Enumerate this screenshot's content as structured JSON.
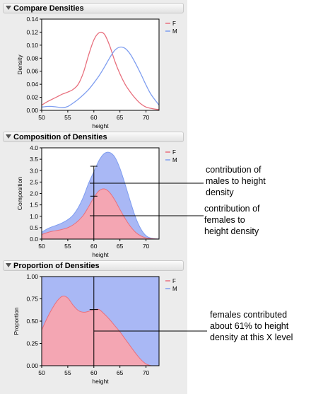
{
  "panels": [
    {
      "title": "Compare Densities"
    },
    {
      "title": "Composition of Densities"
    },
    {
      "title": "Proportion of Densities"
    }
  ],
  "annotations": {
    "males": [
      "contribution of",
      "males to height",
      "density"
    ],
    "females": [
      "contribution of",
      "females to",
      "height density"
    ],
    "proportion": [
      "females contributed",
      "about 61% to height",
      "density at this X level"
    ]
  },
  "colors": {
    "F": "#e8707e",
    "M": "#7f9ef0",
    "F_fill": "#f4a6b3",
    "M_fill": "#a9b8f5"
  },
  "chart_data": [
    {
      "type": "line",
      "title": "Compare Densities",
      "xlabel": "height",
      "ylabel": "Density",
      "xlim": [
        50,
        72.5
      ],
      "ylim": [
        0,
        0.14
      ],
      "xticks": [
        50,
        55,
        60,
        65,
        70
      ],
      "yticks": [
        0.0,
        0.02,
        0.04,
        0.06,
        0.08,
        0.1,
        0.12,
        0.14
      ],
      "legend": "top-right",
      "series": [
        {
          "name": "F",
          "x": [
            50,
            51,
            52,
            53,
            54,
            55,
            56,
            57,
            58,
            59,
            60,
            61,
            62,
            63,
            64,
            65,
            66,
            67,
            68,
            69,
            70,
            71,
            72.5
          ],
          "values": [
            0.008,
            0.013,
            0.017,
            0.021,
            0.025,
            0.028,
            0.032,
            0.04,
            0.058,
            0.085,
            0.108,
            0.119,
            0.117,
            0.1,
            0.076,
            0.056,
            0.04,
            0.028,
            0.018,
            0.01,
            0.005,
            0.003,
            0.001
          ]
        },
        {
          "name": "M",
          "x": [
            50,
            51,
            52,
            53,
            54,
            55,
            56,
            57,
            58,
            59,
            60,
            61,
            62,
            63,
            64,
            65,
            66,
            67,
            68,
            69,
            70,
            71,
            72.5
          ],
          "values": [
            0.005,
            0.006,
            0.006,
            0.005,
            0.004,
            0.006,
            0.011,
            0.017,
            0.024,
            0.032,
            0.042,
            0.053,
            0.066,
            0.08,
            0.092,
            0.097,
            0.095,
            0.086,
            0.072,
            0.056,
            0.039,
            0.024,
            0.008
          ]
        }
      ]
    },
    {
      "type": "area",
      "title": "Composition of Densities",
      "xlabel": "height",
      "ylabel": "Composition",
      "xlim": [
        50,
        72.5
      ],
      "ylim": [
        0,
        4.0
      ],
      "xticks": [
        50,
        55,
        60,
        65,
        70
      ],
      "yticks": [
        0.0,
        0.5,
        1.0,
        1.5,
        2.0,
        2.5,
        3.0,
        3.5,
        4.0
      ],
      "legend": "top-right",
      "series": [
        {
          "name": "F",
          "x": [
            50,
            51,
            52,
            53,
            54,
            55,
            56,
            57,
            58,
            59,
            60,
            61,
            62,
            63,
            64,
            65,
            66,
            67,
            68,
            69,
            70,
            71,
            72.5
          ],
          "values": [
            0.2,
            0.28,
            0.34,
            0.38,
            0.43,
            0.5,
            0.62,
            0.8,
            1.05,
            1.42,
            1.82,
            2.12,
            2.2,
            2.05,
            1.72,
            1.3,
            0.9,
            0.56,
            0.3,
            0.14,
            0.05,
            0.02,
            0.0
          ]
        },
        {
          "name": "M",
          "x": [
            50,
            51,
            52,
            53,
            54,
            55,
            56,
            57,
            58,
            59,
            60,
            61,
            62,
            63,
            64,
            65,
            66,
            67,
            68,
            69,
            70,
            71,
            72.5
          ],
          "values": [
            0.3,
            0.44,
            0.54,
            0.62,
            0.72,
            0.85,
            1.05,
            1.38,
            1.85,
            2.45,
            2.95,
            3.45,
            3.75,
            3.8,
            3.6,
            3.1,
            2.4,
            1.65,
            0.95,
            0.45,
            0.15,
            0.04,
            0.0
          ]
        }
      ]
    },
    {
      "type": "area",
      "title": "Proportion of Densities",
      "xlabel": "height",
      "ylabel": "Proportion",
      "xlim": [
        50,
        72.5
      ],
      "ylim": [
        0,
        1.0
      ],
      "xticks": [
        50,
        55,
        60,
        65,
        70
      ],
      "yticks": [
        0.0,
        0.25,
        0.5,
        0.75,
        1.0
      ],
      "legend": "top-right",
      "series": [
        {
          "name": "F",
          "x": [
            50,
            51,
            52,
            53,
            54,
            55,
            56,
            57,
            58,
            59,
            60,
            61,
            62,
            63,
            64,
            65,
            66,
            67,
            68,
            69,
            70,
            71,
            71.5,
            72.5
          ],
          "values": [
            0.4,
            0.53,
            0.64,
            0.73,
            0.78,
            0.76,
            0.68,
            0.62,
            0.6,
            0.61,
            0.63,
            0.63,
            0.58,
            0.52,
            0.45,
            0.38,
            0.3,
            0.22,
            0.14,
            0.07,
            0.02,
            0.0,
            0.0,
            0.0
          ]
        },
        {
          "name": "M",
          "x": [
            50,
            72.5
          ],
          "values": [
            1.0,
            1.0
          ]
        }
      ]
    }
  ]
}
